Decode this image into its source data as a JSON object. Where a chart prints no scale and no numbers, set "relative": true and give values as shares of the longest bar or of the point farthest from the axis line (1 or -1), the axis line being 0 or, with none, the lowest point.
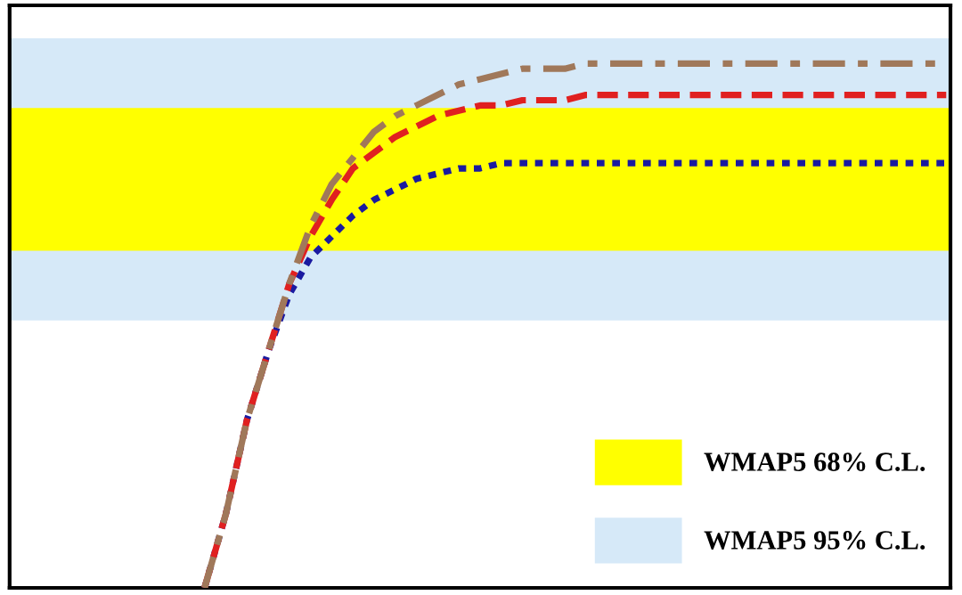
{
  "chart_data": {
    "type": "line",
    "relative": true,
    "categories": [
      null,
      null,
      null,
      null,
      null,
      null,
      null,
      null,
      null,
      null,
      null,
      null,
      null,
      null,
      null,
      null,
      null,
      null,
      null,
      null,
      null,
      null,
      null,
      null,
      null,
      null,
      null,
      null,
      null,
      null,
      null,
      null,
      null,
      null,
      null,
      null,
      null,
      null,
      null,
      null,
      null,
      null,
      null,
      null,
      null
    ],
    "series": [
      {
        "color": "#1a1aa0",
        "line_style": "dotted",
        "values": [
          null,
          null,
          null,
          null,
          null,
          null,
          null,
          null,
          null,
          0,
          0.14,
          0.32,
          0.45,
          0.56,
          0.63,
          0.67,
          0.71,
          0.74,
          0.76,
          0.78,
          0.79,
          0.8,
          0.8,
          0.81,
          0.81,
          0.81,
          0.81,
          0.81,
          0.81,
          0.81,
          0.81,
          0.81,
          0.81,
          0.81,
          0.81,
          0.81,
          0.81,
          0.81,
          0.81,
          0.81,
          0.81,
          0.81,
          0.81,
          0.81,
          0.81
        ]
      },
      {
        "color": "#e02020",
        "line_style": "dashed",
        "values": [
          null,
          null,
          null,
          null,
          null,
          null,
          null,
          null,
          null,
          0,
          0.14,
          0.32,
          0.45,
          0.58,
          0.67,
          0.74,
          0.8,
          0.83,
          0.86,
          0.88,
          0.9,
          0.91,
          0.92,
          0.92,
          0.93,
          0.93,
          0.93,
          0.94,
          0.94,
          0.94,
          0.94,
          0.94,
          0.94,
          0.94,
          0.94,
          0.94,
          0.94,
          0.94,
          0.94,
          0.94,
          0.94,
          0.94,
          0.94,
          0.94,
          0.94
        ]
      },
      {
        "color": "#a0785a",
        "line_style": "dashdot",
        "values": [
          null,
          null,
          null,
          null,
          null,
          null,
          null,
          null,
          null,
          0,
          0.14,
          0.32,
          0.45,
          0.58,
          0.69,
          0.77,
          0.82,
          0.87,
          0.9,
          0.92,
          0.94,
          0.96,
          0.97,
          0.98,
          0.99,
          0.99,
          0.99,
          1,
          1,
          1,
          1,
          1,
          1,
          1,
          1,
          1,
          1,
          1,
          1,
          1,
          1,
          1,
          1,
          1,
          1
        ]
      }
    ],
    "bands": [
      {
        "axis": "y",
        "from": 0.51,
        "to": 1.048,
        "label": "WMAP5 95% C.L.",
        "color": "#d6e9f8"
      },
      {
        "axis": "y",
        "from": 0.643,
        "to": 0.915,
        "label": "WMAP5 68% C.L.",
        "color": "#ffff00"
      }
    ],
    "legend": "bottom right"
  }
}
